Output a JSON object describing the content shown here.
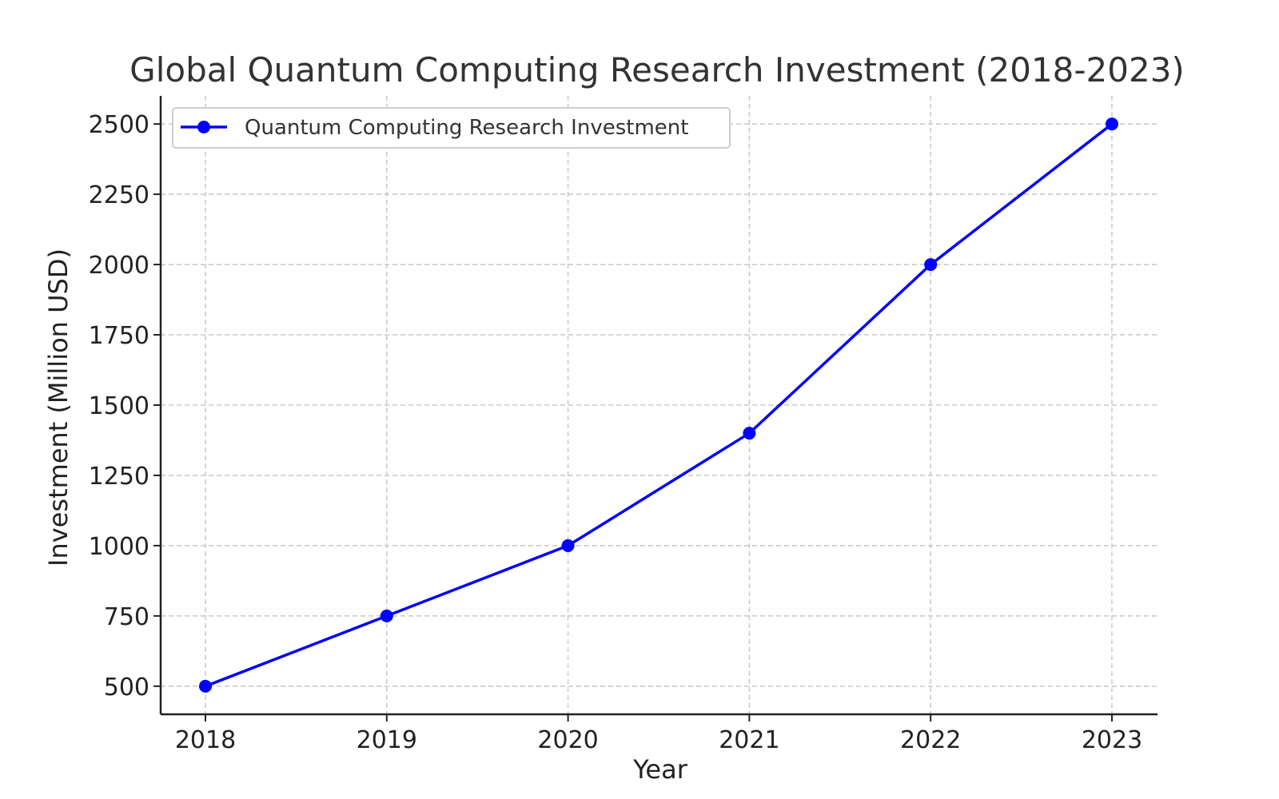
{
  "chart_data": {
    "type": "line",
    "title": "Global Quantum Computing Research Investment (2018-2023)",
    "xlabel": "Year",
    "ylabel": "Investment (Million USD)",
    "categories": [
      "2018",
      "2019",
      "2020",
      "2021",
      "2022",
      "2023"
    ],
    "series": [
      {
        "name": "Quantum Computing Research Investment",
        "values": [
          500,
          750,
          1000,
          1400,
          2000,
          2500
        ],
        "color": "#0000ff",
        "marker": "circle"
      }
    ],
    "yticks": [
      500,
      750,
      1000,
      1250,
      1500,
      1750,
      2000,
      2250,
      2500
    ],
    "ylim": [
      400,
      2600
    ],
    "grid": true,
    "grid_style": "dashed",
    "legend_position": "top-left"
  }
}
